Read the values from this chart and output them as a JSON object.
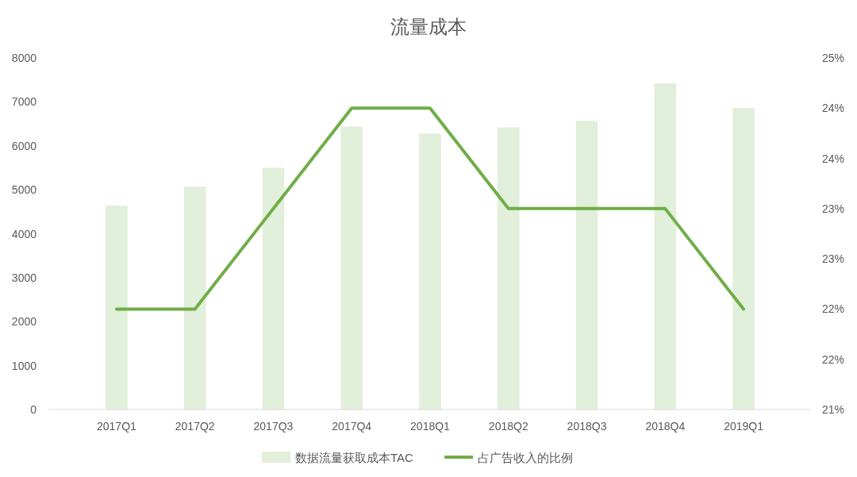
{
  "chart_data": {
    "type": "bar",
    "title": "流量成本",
    "categories": [
      "2017Q1",
      "2017Q2",
      "2017Q3",
      "2017Q4",
      "2018Q1",
      "2018Q2",
      "2018Q3",
      "2018Q4",
      "2019Q1"
    ],
    "series": [
      {
        "name": "数据流量获取成本TAC",
        "color": "#e2efda",
        "values": [
          4640,
          5070,
          5500,
          6440,
          6280,
          6420,
          6570,
          7420,
          6860
        ]
      },
      {
        "name": "占广告收入的比例",
        "type": "line",
        "axis": "y2",
        "color": "#70ad47",
        "values": [
          22,
          22,
          23,
          24,
          24,
          23,
          23,
          23,
          22
        ]
      }
    ],
    "ylim": [
      0,
      8000
    ],
    "yticks": [
      0,
      1000,
      2000,
      3000,
      4000,
      5000,
      6000,
      7000,
      8000
    ],
    "y2lim": [
      21,
      24.5
    ],
    "y2ticks": [
      {
        "value": 21,
        "label": "21%"
      },
      {
        "value": 21.5,
        "label": "22%"
      },
      {
        "value": 22,
        "label": "22%"
      },
      {
        "value": 22.5,
        "label": "23%"
      },
      {
        "value": 23,
        "label": "23%"
      },
      {
        "value": 23.5,
        "label": "24%"
      },
      {
        "value": 24,
        "label": "24%"
      },
      {
        "value": 24.5,
        "label": "25%"
      }
    ],
    "grid": false,
    "legend": "bottom",
    "marker": "none",
    "line_style": "solid"
  }
}
